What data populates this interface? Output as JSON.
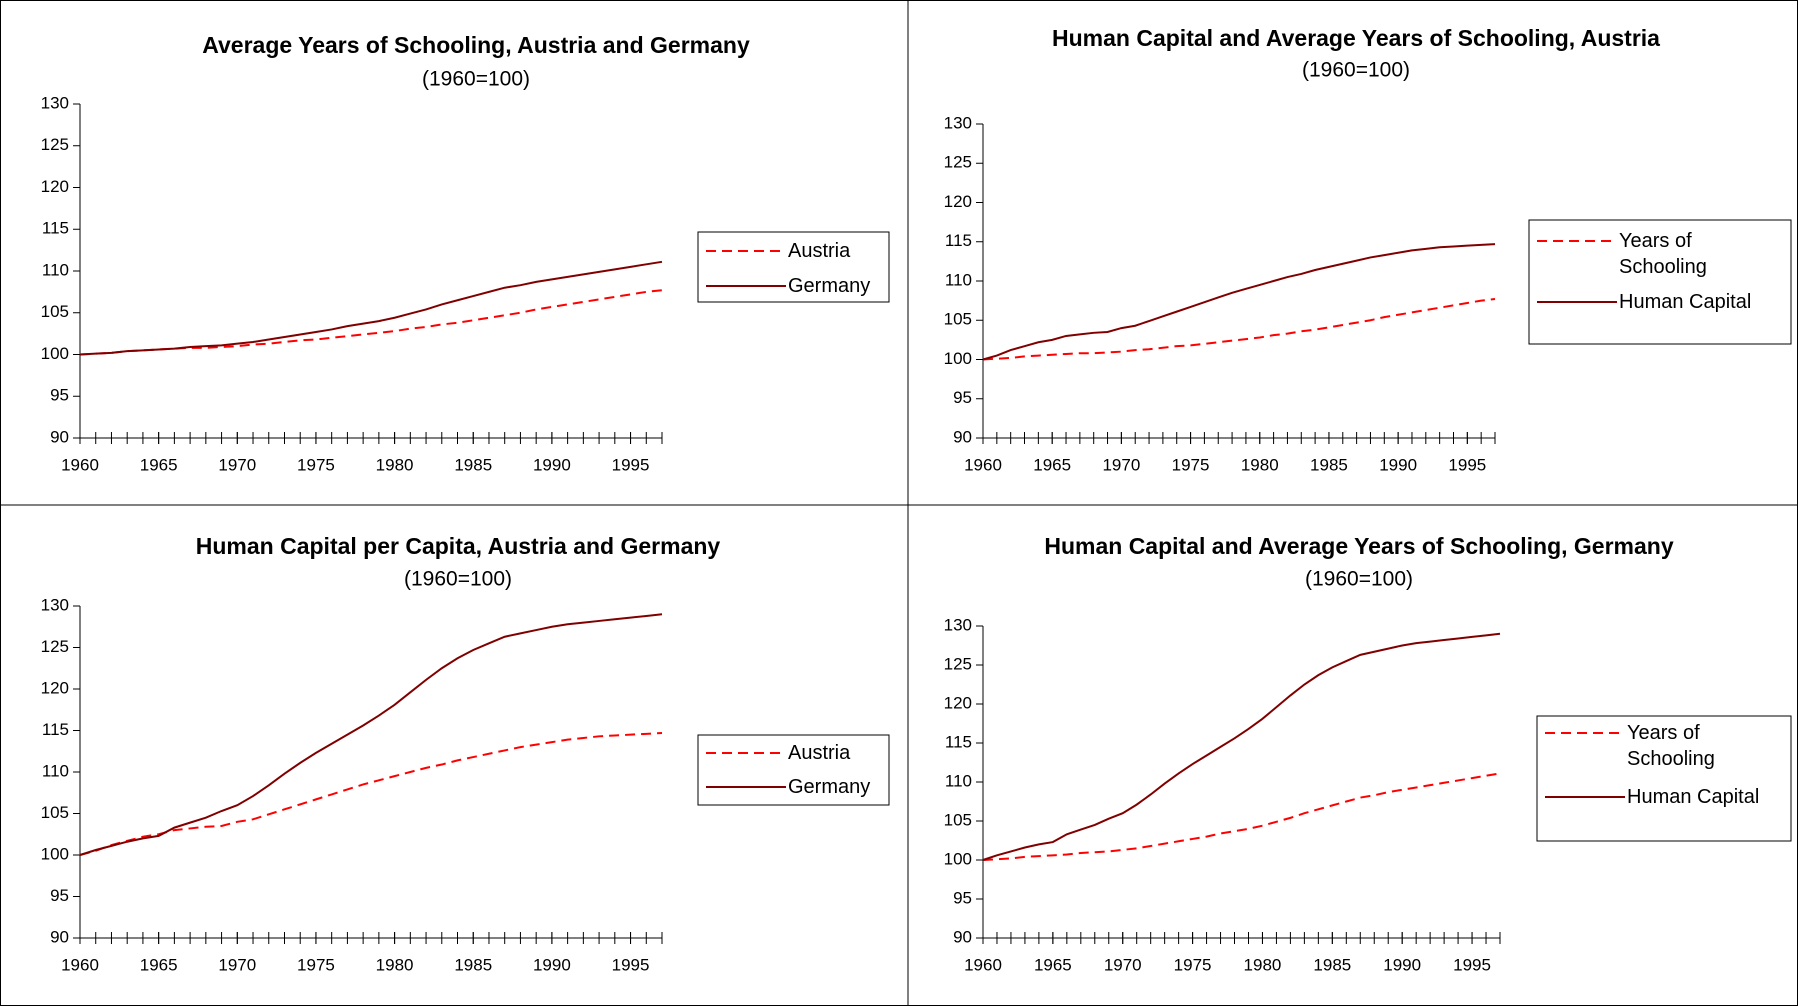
{
  "chart_data": [
    {
      "type": "line",
      "title": "Average Years of Schooling, Austria and Germany",
      "subtitle": "(1960=100)",
      "x": [
        1960,
        1961,
        1962,
        1963,
        1964,
        1965,
        1966,
        1967,
        1968,
        1969,
        1970,
        1971,
        1972,
        1973,
        1974,
        1975,
        1976,
        1977,
        1978,
        1979,
        1980,
        1981,
        1982,
        1983,
        1984,
        1985,
        1986,
        1987,
        1988,
        1989,
        1990,
        1991,
        1992,
        1993,
        1994,
        1995,
        1996,
        1997
      ],
      "xlim": [
        1960,
        1997
      ],
      "xticks": [
        1960,
        1965,
        1970,
        1975,
        1980,
        1985,
        1990,
        1995
      ],
      "ylim": [
        90,
        130
      ],
      "yticks": [
        90,
        95,
        100,
        105,
        110,
        115,
        120,
        125,
        130
      ],
      "series": [
        {
          "name": "Austria",
          "color": "#ff0000",
          "line_style": "dashed",
          "values": [
            100.0,
            100.1,
            100.2,
            100.4,
            100.5,
            100.6,
            100.7,
            100.8,
            100.8,
            100.9,
            101.0,
            101.2,
            101.3,
            101.5,
            101.7,
            101.8,
            102.0,
            102.2,
            102.4,
            102.6,
            102.8,
            103.1,
            103.3,
            103.6,
            103.8,
            104.1,
            104.4,
            104.7,
            105.0,
            105.4,
            105.7,
            106.0,
            106.3,
            106.6,
            106.9,
            107.2,
            107.5,
            107.7
          ]
        },
        {
          "name": "Germany",
          "color": "#800000",
          "line_style": "solid",
          "values": [
            100.0,
            100.1,
            100.2,
            100.4,
            100.5,
            100.6,
            100.7,
            100.9,
            101.0,
            101.1,
            101.3,
            101.5,
            101.8,
            102.1,
            102.4,
            102.7,
            103.0,
            103.4,
            103.7,
            104.0,
            104.4,
            104.9,
            105.4,
            106.0,
            106.5,
            107.0,
            107.5,
            108.0,
            108.3,
            108.7,
            109.0,
            109.3,
            109.6,
            109.9,
            110.2,
            110.5,
            110.8,
            111.1
          ]
        }
      ]
    },
    {
      "type": "line",
      "title": "Human Capital and Average Years of Schooling, Austria",
      "subtitle": "(1960=100)",
      "x": [
        1960,
        1961,
        1962,
        1963,
        1964,
        1965,
        1966,
        1967,
        1968,
        1969,
        1970,
        1971,
        1972,
        1973,
        1974,
        1975,
        1976,
        1977,
        1978,
        1979,
        1980,
        1981,
        1982,
        1983,
        1984,
        1985,
        1986,
        1987,
        1988,
        1989,
        1990,
        1991,
        1992,
        1993,
        1994,
        1995,
        1996,
        1997
      ],
      "xlim": [
        1960,
        1997
      ],
      "xticks": [
        1960,
        1965,
        1970,
        1975,
        1980,
        1985,
        1990,
        1995
      ],
      "ylim": [
        90,
        130
      ],
      "yticks": [
        90,
        95,
        100,
        105,
        110,
        115,
        120,
        125,
        130
      ],
      "series": [
        {
          "name": "Years of Schooling",
          "color": "#ff0000",
          "line_style": "dashed",
          "values": [
            100.0,
            100.1,
            100.2,
            100.4,
            100.5,
            100.6,
            100.7,
            100.8,
            100.8,
            100.9,
            101.0,
            101.2,
            101.3,
            101.5,
            101.7,
            101.8,
            102.0,
            102.2,
            102.4,
            102.6,
            102.8,
            103.1,
            103.3,
            103.6,
            103.8,
            104.1,
            104.4,
            104.7,
            105.0,
            105.4,
            105.7,
            106.0,
            106.3,
            106.6,
            106.9,
            107.2,
            107.5,
            107.7
          ]
        },
        {
          "name": "Human Capital",
          "color": "#800000",
          "line_style": "solid",
          "values": [
            100.0,
            100.5,
            101.2,
            101.7,
            102.2,
            102.5,
            103.0,
            103.2,
            103.4,
            103.5,
            104.0,
            104.3,
            104.9,
            105.5,
            106.1,
            106.7,
            107.3,
            107.9,
            108.5,
            109.0,
            109.5,
            110.0,
            110.5,
            110.9,
            111.4,
            111.8,
            112.2,
            112.6,
            113.0,
            113.3,
            113.6,
            113.9,
            114.1,
            114.3,
            114.4,
            114.5,
            114.6,
            114.7
          ]
        }
      ]
    },
    {
      "type": "line",
      "title": "Human Capital per Capita, Austria and Germany",
      "subtitle": "(1960=100)",
      "x": [
        1960,
        1961,
        1962,
        1963,
        1964,
        1965,
        1966,
        1967,
        1968,
        1969,
        1970,
        1971,
        1972,
        1973,
        1974,
        1975,
        1976,
        1977,
        1978,
        1979,
        1980,
        1981,
        1982,
        1983,
        1984,
        1985,
        1986,
        1987,
        1988,
        1989,
        1990,
        1991,
        1992,
        1993,
        1994,
        1995,
        1996,
        1997
      ],
      "xlim": [
        1960,
        1997
      ],
      "xticks": [
        1960,
        1965,
        1970,
        1975,
        1980,
        1985,
        1990,
        1995
      ],
      "ylim": [
        90,
        130
      ],
      "yticks": [
        90,
        95,
        100,
        105,
        110,
        115,
        120,
        125,
        130
      ],
      "series": [
        {
          "name": "Austria",
          "color": "#ff0000",
          "line_style": "dashed",
          "values": [
            100.0,
            100.5,
            101.2,
            101.7,
            102.2,
            102.5,
            103.0,
            103.2,
            103.4,
            103.5,
            104.0,
            104.3,
            104.9,
            105.5,
            106.1,
            106.7,
            107.3,
            107.9,
            108.5,
            109.0,
            109.5,
            110.0,
            110.5,
            110.9,
            111.4,
            111.8,
            112.2,
            112.6,
            113.0,
            113.3,
            113.6,
            113.9,
            114.1,
            114.3,
            114.4,
            114.5,
            114.6,
            114.7
          ]
        },
        {
          "name": "Germany",
          "color": "#800000",
          "line_style": "solid",
          "values": [
            100.0,
            100.6,
            101.1,
            101.6,
            102.0,
            102.3,
            103.3,
            103.9,
            104.5,
            105.3,
            106.0,
            107.1,
            108.4,
            109.8,
            111.1,
            112.3,
            113.4,
            114.5,
            115.6,
            116.8,
            118.1,
            119.6,
            121.1,
            122.5,
            123.7,
            124.7,
            125.5,
            126.3,
            126.7,
            127.1,
            127.5,
            127.8,
            128.0,
            128.2,
            128.4,
            128.6,
            128.8,
            129.0
          ]
        }
      ]
    },
    {
      "type": "line",
      "title": "Human Capital and Average Years of Schooling, Germany",
      "subtitle": "(1960=100)",
      "x": [
        1960,
        1961,
        1962,
        1963,
        1964,
        1965,
        1966,
        1967,
        1968,
        1969,
        1970,
        1971,
        1972,
        1973,
        1974,
        1975,
        1976,
        1977,
        1978,
        1979,
        1980,
        1981,
        1982,
        1983,
        1984,
        1985,
        1986,
        1987,
        1988,
        1989,
        1990,
        1991,
        1992,
        1993,
        1994,
        1995,
        1996,
        1997
      ],
      "xlim": [
        1960,
        1997
      ],
      "xticks": [
        1960,
        1965,
        1970,
        1975,
        1980,
        1985,
        1990,
        1995
      ],
      "ylim": [
        90,
        130
      ],
      "yticks": [
        90,
        95,
        100,
        105,
        110,
        115,
        120,
        125,
        130
      ],
      "series": [
        {
          "name": "Years of Schooling",
          "color": "#ff0000",
          "line_style": "dashed",
          "values": [
            100.0,
            100.1,
            100.2,
            100.4,
            100.5,
            100.6,
            100.7,
            100.9,
            101.0,
            101.1,
            101.3,
            101.5,
            101.8,
            102.1,
            102.4,
            102.7,
            103.0,
            103.4,
            103.7,
            104.0,
            104.4,
            104.9,
            105.4,
            106.0,
            106.5,
            107.0,
            107.5,
            108.0,
            108.3,
            108.7,
            109.0,
            109.3,
            109.6,
            109.9,
            110.2,
            110.5,
            110.8,
            111.1
          ]
        },
        {
          "name": "Human Capital",
          "color": "#800000",
          "line_style": "solid",
          "values": [
            100.0,
            100.6,
            101.1,
            101.6,
            102.0,
            102.3,
            103.3,
            103.9,
            104.5,
            105.3,
            106.0,
            107.1,
            108.4,
            109.8,
            111.1,
            112.3,
            113.4,
            114.5,
            115.6,
            116.8,
            118.1,
            119.6,
            121.1,
            122.5,
            123.7,
            124.7,
            125.5,
            126.3,
            126.7,
            127.1,
            127.5,
            127.8,
            128.0,
            128.2,
            128.4,
            128.6,
            128.8,
            129.0
          ]
        }
      ]
    }
  ]
}
